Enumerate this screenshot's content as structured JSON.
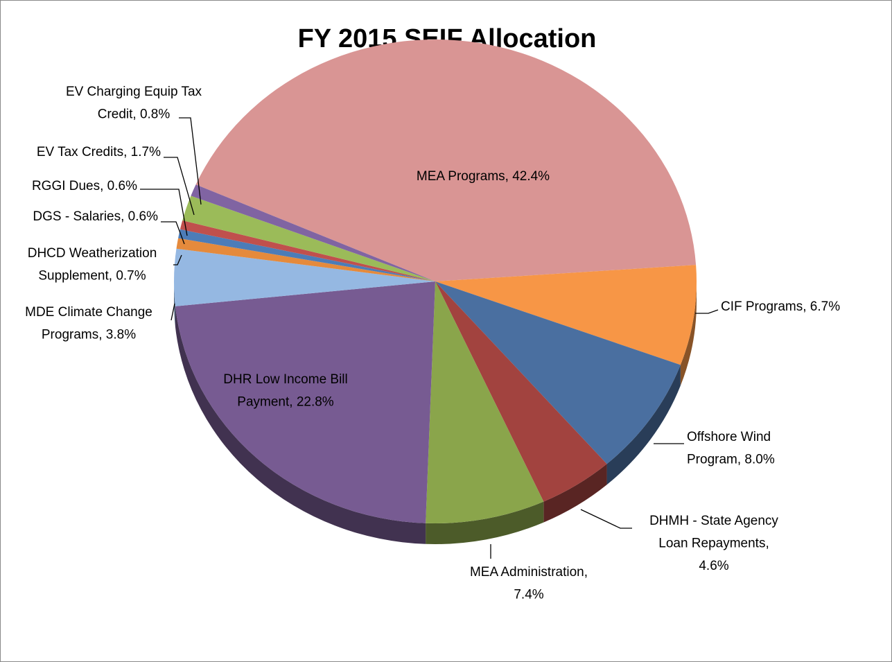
{
  "chart_data": {
    "type": "pie3d",
    "title": "FY 2015 SEIF Allocation",
    "values": [
      42.4,
      6.7,
      8.0,
      4.6,
      7.4,
      22.8,
      3.8,
      0.7,
      0.6,
      0.6,
      1.7,
      0.8
    ],
    "value_labels": [
      "MEA Programs, 42.4%",
      "CIF Programs, 6.7%",
      "Offshore Wind Program, 8.0%",
      "DHMH - State Agency Loan Repayments, 4.6%",
      "MEA Administration, 7.4%",
      "DHR Low Income Bill Payment, 22.8%",
      "MDE Climate Change Programs, 3.8%",
      "DHCD Weatherization Supplement, 0.7%",
      "DGS - Salaries, 0.6%",
      "RGGI Dues, 0.6%",
      "EV Tax Credits, 1.7%",
      "EV Charging Equip Tax Credit, 0.8%"
    ],
    "colors": [
      "#d99594",
      "#f79646",
      "#4a6fa0",
      "#a2433f",
      "#8aa54b",
      "#775b92",
      "#95b8e2",
      "#e58a3c",
      "#4c7cb8",
      "#c0504d",
      "#9bbb59",
      "#8064a2"
    ]
  }
}
